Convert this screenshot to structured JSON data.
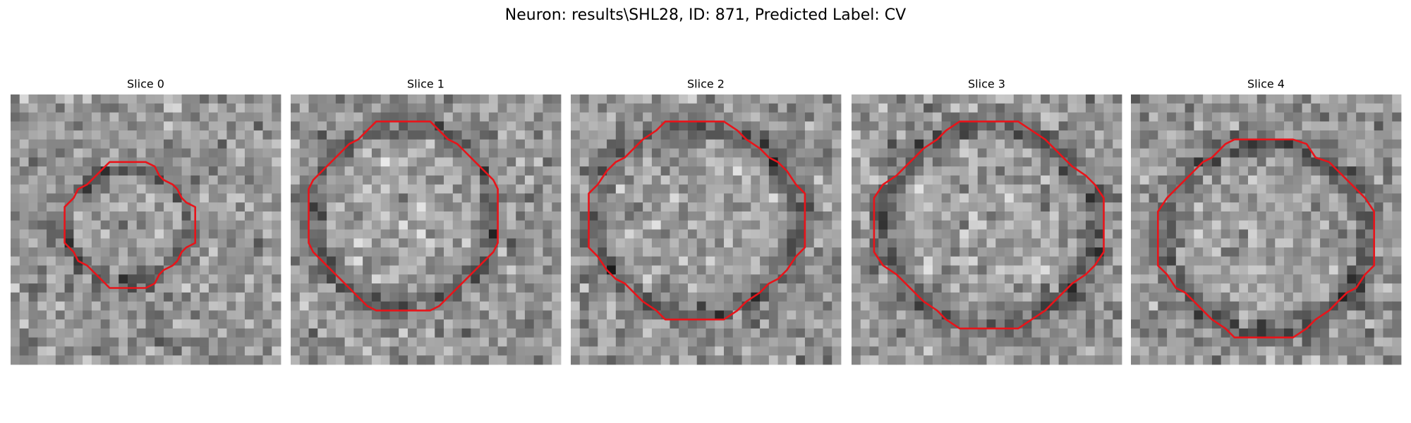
{
  "title": "Neuron: results\\SHL28, ID: 871, Predicted Label: CV",
  "panels": [
    {
      "title": "Slice 0"
    },
    {
      "title": "Slice 1"
    },
    {
      "title": "Slice 2"
    },
    {
      "title": "Slice 3"
    },
    {
      "title": "Slice 4"
    }
  ]
}
